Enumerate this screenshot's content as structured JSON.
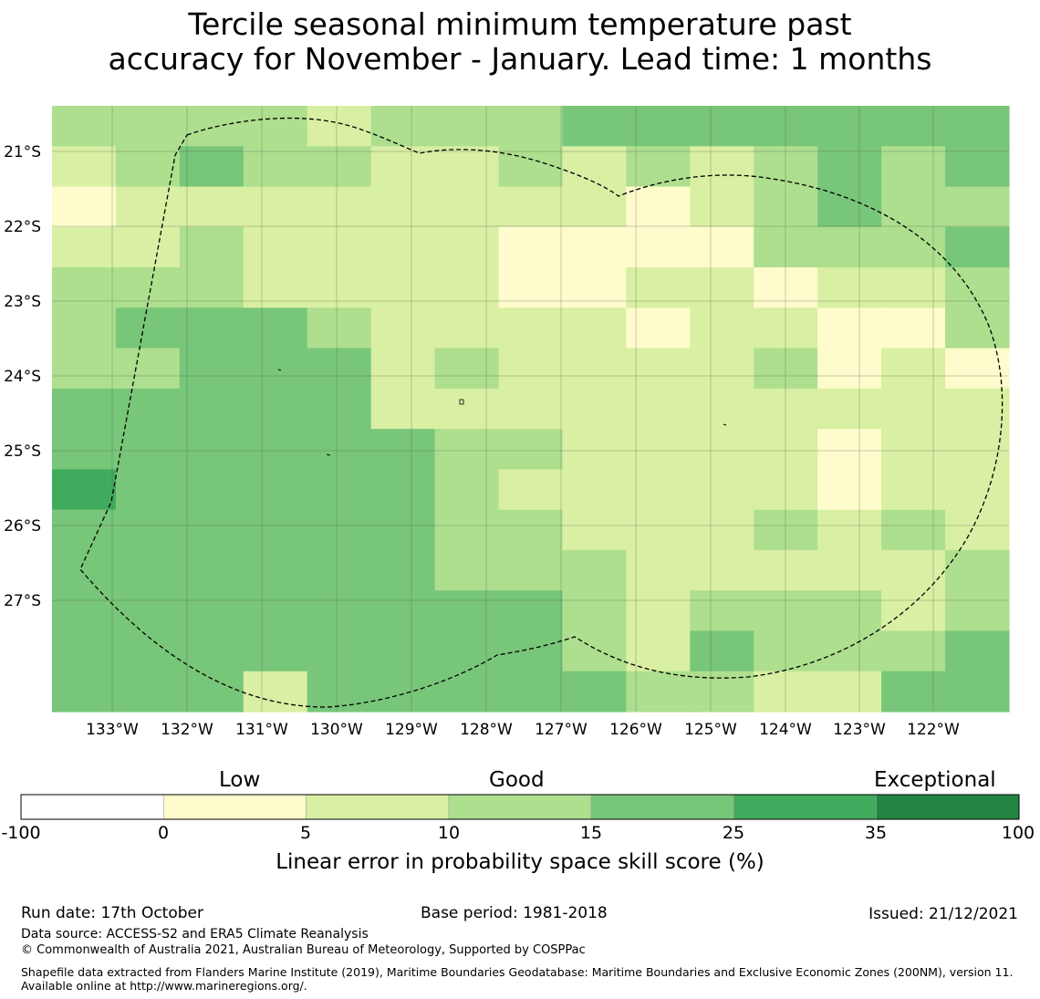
{
  "title": {
    "line1": "Tercile seasonal minimum temperature past",
    "line2": "accuracy for November - January. Lead time: 1 months"
  },
  "map": {
    "lat_labels": [
      "21°S",
      "22°S",
      "23°S",
      "24°S",
      "25°S",
      "26°S",
      "27°S"
    ],
    "lon_labels": [
      "133°W",
      "132°W",
      "131°W",
      "130°W",
      "129°W",
      "128°W",
      "127°W",
      "126°W",
      "125°W",
      "124°W",
      "123°W",
      "122°W"
    ],
    "palette": [
      "#ffffff",
      "#fefccc",
      "#d9efa3",
      "#addf8e",
      "#78c679",
      "#41ab5d",
      "#238443"
    ],
    "grid": [
      [
        3,
        3,
        3,
        3,
        2,
        3,
        3,
        3,
        4,
        4,
        4,
        4,
        4,
        4,
        4
      ],
      [
        2,
        3,
        4,
        3,
        3,
        2,
        2,
        3,
        2,
        3,
        2,
        3,
        4,
        3,
        4
      ],
      [
        1,
        2,
        2,
        2,
        2,
        2,
        2,
        2,
        2,
        1,
        2,
        3,
        4,
        3,
        3
      ],
      [
        2,
        2,
        3,
        2,
        2,
        2,
        2,
        1,
        1,
        1,
        1,
        3,
        3,
        3,
        4
      ],
      [
        3,
        3,
        3,
        2,
        2,
        2,
        2,
        1,
        1,
        2,
        2,
        1,
        2,
        2,
        3
      ],
      [
        3,
        4,
        4,
        4,
        3,
        2,
        2,
        2,
        2,
        1,
        2,
        2,
        1,
        1,
        3
      ],
      [
        3,
        3,
        4,
        4,
        4,
        2,
        3,
        2,
        2,
        2,
        2,
        3,
        1,
        2,
        1
      ],
      [
        4,
        4,
        4,
        4,
        4,
        2,
        2,
        2,
        2,
        2,
        2,
        2,
        2,
        2,
        2
      ],
      [
        4,
        4,
        4,
        4,
        4,
        4,
        3,
        3,
        2,
        2,
        2,
        2,
        1,
        2,
        2
      ],
      [
        5,
        4,
        4,
        4,
        4,
        4,
        3,
        2,
        2,
        2,
        2,
        2,
        1,
        2,
        2
      ],
      [
        4,
        4,
        4,
        4,
        4,
        4,
        3,
        3,
        2,
        2,
        2,
        3,
        2,
        3,
        2
      ],
      [
        4,
        4,
        4,
        4,
        4,
        4,
        3,
        3,
        3,
        2,
        2,
        2,
        2,
        2,
        3
      ],
      [
        4,
        4,
        4,
        4,
        4,
        4,
        4,
        4,
        3,
        2,
        3,
        3,
        3,
        2,
        3
      ],
      [
        4,
        4,
        4,
        4,
        4,
        4,
        4,
        4,
        3,
        2,
        4,
        3,
        3,
        3,
        4
      ],
      [
        4,
        4,
        4,
        2,
        4,
        4,
        4,
        4,
        4,
        3,
        3,
        2,
        2,
        4,
        4
      ]
    ]
  },
  "colorbar": {
    "categories": [
      "Low",
      "Good",
      "Exceptional"
    ],
    "ticks": [
      "-100",
      "0",
      "5",
      "10",
      "15",
      "25",
      "35",
      "100"
    ],
    "label": "Linear error in probability space skill score (%)"
  },
  "footer": {
    "run_date": "Run date: 17th October",
    "base_period": "Base period: 1981-2018",
    "issued": "Issued: 21/12/2021",
    "data_source": "Data source: ACCESS-S2 and ERA5 Climate Reanalysis",
    "copyright": "© Commonwealth of Australia 2021, Australian Bureau of Meteorology, Supported by COSPPac",
    "shapefile": "Shapefile data extracted from Flanders Marine Institute (2019), Maritime Boundaries Geodatabase: Maritime Boundaries and Exclusive Economic Zones (200NM), version 11. Available online at http://www.marineregions.org/."
  }
}
